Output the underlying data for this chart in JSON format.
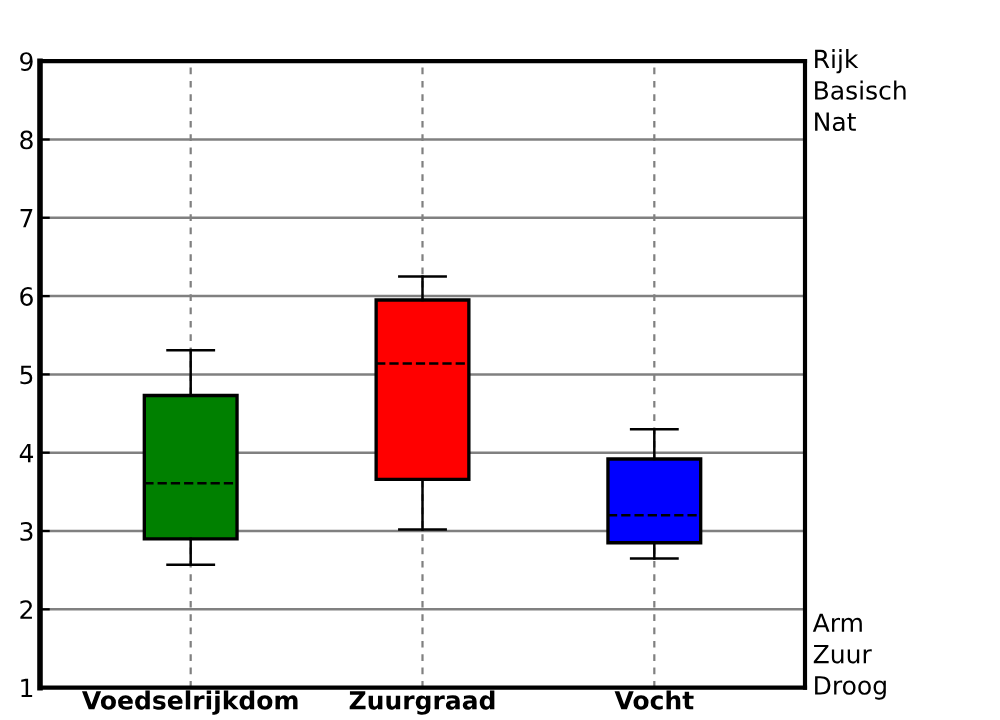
{
  "chart_data": {
    "type": "box",
    "categories": [
      "Voedselrijkdom",
      "Zuurgraad",
      "Vocht"
    ],
    "boxes": [
      {
        "low": 2.57,
        "q1": 2.9,
        "median": 3.61,
        "q3": 4.73,
        "high": 5.31
      },
      {
        "low": 3.02,
        "q1": 3.66,
        "median": 5.14,
        "q3": 5.95,
        "high": 6.25
      },
      {
        "low": 2.65,
        "q1": 2.85,
        "median": 3.2,
        "q3": 3.92,
        "high": 4.3
      }
    ],
    "colors": [
      "#008000",
      "#ff0000",
      "#0000ff"
    ],
    "ylim": [
      1,
      9
    ],
    "yticks": [
      1,
      2,
      3,
      4,
      5,
      6,
      7,
      8,
      9
    ],
    "grid": true,
    "annotations": [
      "Rijk",
      "Basisch",
      "Nat",
      "Arm",
      "Zuur",
      "Droog"
    ]
  }
}
